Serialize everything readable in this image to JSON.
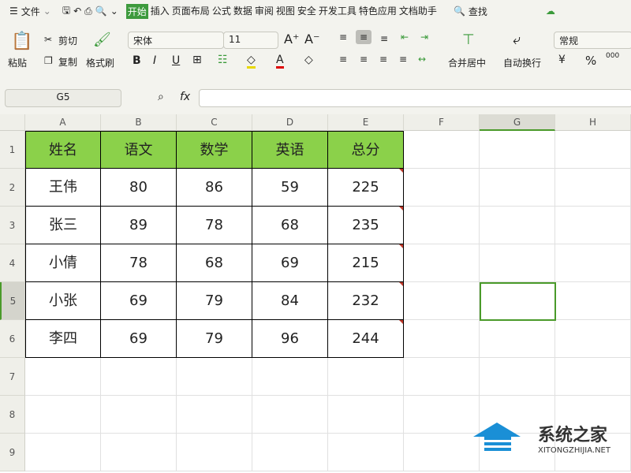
{
  "menu": {
    "file": "文件",
    "tabs": [
      "开始",
      "插入",
      "页面布局",
      "公式",
      "数据",
      "审阅",
      "视图",
      "安全",
      "开发工具",
      "特色应用",
      "文档助手"
    ],
    "search": "查找"
  },
  "ribbon": {
    "paste": "粘贴",
    "cut": "剪切",
    "copy": "复制",
    "format_painter": "格式刷",
    "font": "宋体",
    "size": "11",
    "merge": "合并居中",
    "wrap": "自动换行",
    "number_format": "常规",
    "bold": "B",
    "italic": "I",
    "underline": "U",
    "percent": "%",
    "thousands": "000"
  },
  "formula": {
    "cell_ref": "G5",
    "fx": "fx",
    "value": ""
  },
  "columns": [
    "A",
    "B",
    "C",
    "D",
    "E",
    "F",
    "G",
    "H"
  ],
  "rows": [
    "1",
    "2",
    "3",
    "4",
    "5",
    "6",
    "7",
    "8",
    "9"
  ],
  "table": {
    "headers": [
      "姓名",
      "语文",
      "数学",
      "英语",
      "总分"
    ],
    "data": [
      [
        "王伟",
        "80",
        "86",
        "59",
        "225"
      ],
      [
        "张三",
        "89",
        "78",
        "68",
        "235"
      ],
      [
        "小倩",
        "78",
        "68",
        "69",
        "215"
      ],
      [
        "小张",
        "69",
        "79",
        "84",
        "232"
      ],
      [
        "李四",
        "69",
        "79",
        "96",
        "244"
      ]
    ]
  },
  "selected_cell": "G5",
  "colors": {
    "header_fill": "#8bd14a",
    "selection": "#4a9a2a",
    "active_tab": "#3d9a3d"
  },
  "watermark": {
    "title": "系统之家",
    "url": "XITONGZHIJIA.NET"
  }
}
